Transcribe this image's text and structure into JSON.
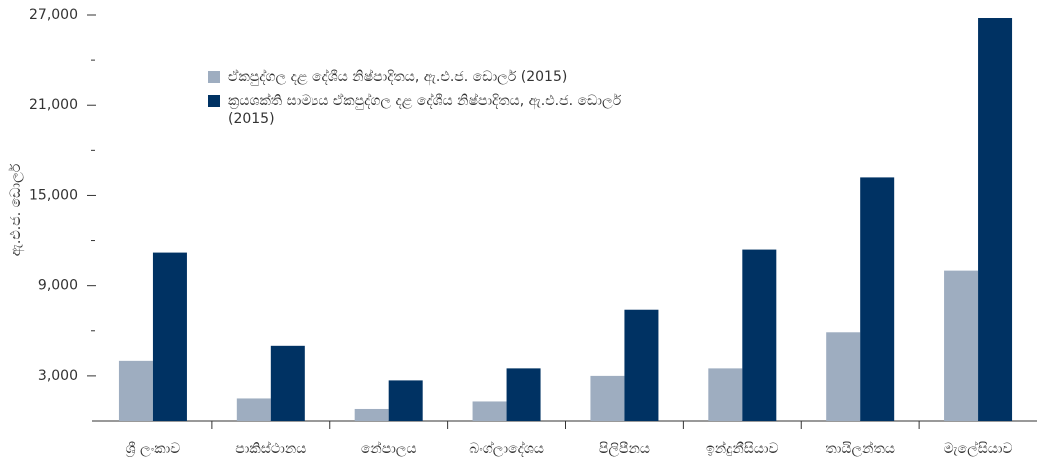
{
  "chart_data": {
    "type": "bar",
    "y_label": "ඇ.එ.ජ. ඩොලර්",
    "categories": [
      "ශ්‍රී ලංකාව",
      "පාකිස්ථානය",
      "නේපාලය",
      "බංග්ලාදේශය",
      "පිලිපීනය",
      "ඉන්දුනීසියාව",
      "තායිලන්තය",
      "මැලේසියාව"
    ],
    "series": [
      {
        "name": "ඒකපුද්ගල දළ දේශීය නිෂ්පාදිතය, ඇ.එ.ජ. ඩොලර් (2015)",
        "color": "#9eadc0",
        "values": [
          4000,
          1500,
          800,
          1300,
          3000,
          3500,
          5900,
          10000
        ]
      },
      {
        "name": "ක්‍රයශක්ති සාම්‍යය ඒකපුද්ගල දළ දේශීය නිෂ්පාදිතය, ඇ.එ.ජ. ඩොලර් (2015)",
        "color": "#003263",
        "values": [
          11200,
          5000,
          2700,
          3500,
          7400,
          11400,
          16200,
          26800
        ]
      }
    ],
    "ylim": [
      0,
      27000
    ],
    "yticks": [
      {
        "value": 3000,
        "label": "3,000"
      },
      {
        "value": 9000,
        "label": "9,000"
      },
      {
        "value": 15000,
        "label": "15,000"
      },
      {
        "value": 21000,
        "label": "21,000"
      },
      {
        "value": 27000,
        "label": "27,000"
      }
    ],
    "yticks_minor": [
      6000,
      12000,
      18000,
      24000
    ],
    "grid": false,
    "legend": "top-left"
  }
}
